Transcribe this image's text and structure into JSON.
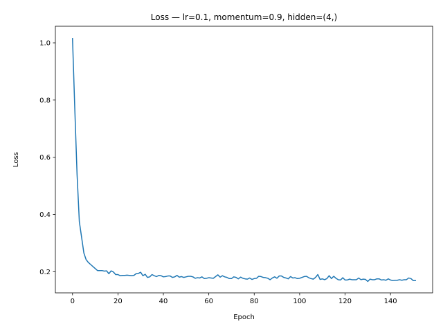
{
  "chart_data": {
    "type": "line",
    "title": "Loss — lr=0.1, momentum=0.9, hidden=(4,)",
    "xlabel": "Epoch",
    "ylabel": "Loss",
    "xlim": [
      -7.55,
      158.55
    ],
    "ylim": [
      0.126,
      1.058
    ],
    "xticks": [
      0,
      20,
      40,
      60,
      80,
      100,
      120,
      140
    ],
    "yticks": [
      0.2,
      0.4,
      0.6,
      0.8,
      1.0
    ],
    "ytick_labels": [
      "0.2",
      "0.4",
      "0.6",
      "0.8",
      "1.0"
    ],
    "grid": false,
    "series": [
      {
        "color": "#1f77b4",
        "x": [
          0,
          1,
          2,
          3,
          4,
          5,
          6,
          7,
          8,
          9,
          10,
          11,
          12,
          13,
          14,
          15,
          16,
          17,
          18,
          19,
          20,
          21,
          22,
          23,
          24,
          25,
          26,
          27,
          28,
          29,
          30,
          31,
          32,
          33,
          34,
          35,
          36,
          37,
          38,
          39,
          40,
          41,
          42,
          43,
          44,
          45,
          46,
          47,
          48,
          49,
          50,
          51,
          52,
          53,
          54,
          55,
          56,
          57,
          58,
          59,
          60,
          61,
          62,
          63,
          64,
          65,
          66,
          67,
          68,
          69,
          70,
          71,
          72,
          73,
          74,
          75,
          76,
          77,
          78,
          79,
          80,
          81,
          82,
          83,
          84,
          85,
          86,
          87,
          88,
          89,
          90,
          91,
          92,
          93,
          94,
          95,
          96,
          97,
          98,
          99,
          100,
          101,
          102,
          103,
          104,
          105,
          106,
          107,
          108,
          109,
          110,
          111,
          112,
          113,
          114,
          115,
          116,
          117,
          118,
          119,
          120,
          121,
          122,
          123,
          124,
          125,
          126,
          127,
          128,
          129,
          130,
          131,
          132,
          133,
          134,
          135,
          136,
          137,
          138,
          139,
          140,
          141,
          142,
          143,
          144,
          145,
          146,
          147,
          148,
          149,
          150,
          151
        ],
        "y": [
          1.015,
          0.77,
          0.54,
          0.375,
          0.32,
          0.265,
          0.242,
          0.232,
          0.225,
          0.218,
          0.211,
          0.204,
          0.204,
          0.204,
          0.202,
          0.203,
          0.193,
          0.203,
          0.199,
          0.19,
          0.19,
          0.186,
          0.187,
          0.187,
          0.188,
          0.187,
          0.186,
          0.187,
          0.193,
          0.194,
          0.198,
          0.186,
          0.191,
          0.18,
          0.182,
          0.19,
          0.186,
          0.183,
          0.187,
          0.186,
          0.182,
          0.183,
          0.185,
          0.185,
          0.18,
          0.182,
          0.187,
          0.181,
          0.183,
          0.18,
          0.182,
          0.184,
          0.184,
          0.182,
          0.177,
          0.179,
          0.178,
          0.182,
          0.176,
          0.177,
          0.179,
          0.178,
          0.177,
          0.183,
          0.189,
          0.181,
          0.186,
          0.182,
          0.18,
          0.176,
          0.176,
          0.182,
          0.18,
          0.175,
          0.181,
          0.177,
          0.175,
          0.174,
          0.178,
          0.173,
          0.176,
          0.177,
          0.184,
          0.183,
          0.18,
          0.179,
          0.177,
          0.172,
          0.178,
          0.182,
          0.177,
          0.185,
          0.185,
          0.18,
          0.178,
          0.175,
          0.183,
          0.178,
          0.179,
          0.176,
          0.177,
          0.18,
          0.183,
          0.184,
          0.179,
          0.176,
          0.174,
          0.18,
          0.19,
          0.173,
          0.175,
          0.172,
          0.176,
          0.186,
          0.176,
          0.184,
          0.177,
          0.172,
          0.171,
          0.179,
          0.171,
          0.171,
          0.174,
          0.172,
          0.172,
          0.172,
          0.178,
          0.172,
          0.174,
          0.173,
          0.166,
          0.174,
          0.172,
          0.172,
          0.175,
          0.175,
          0.171,
          0.172,
          0.17,
          0.175,
          0.171,
          0.169,
          0.17,
          0.17,
          0.172,
          0.17,
          0.172,
          0.172,
          0.178,
          0.176,
          0.169,
          0.169
        ]
      }
    ]
  }
}
